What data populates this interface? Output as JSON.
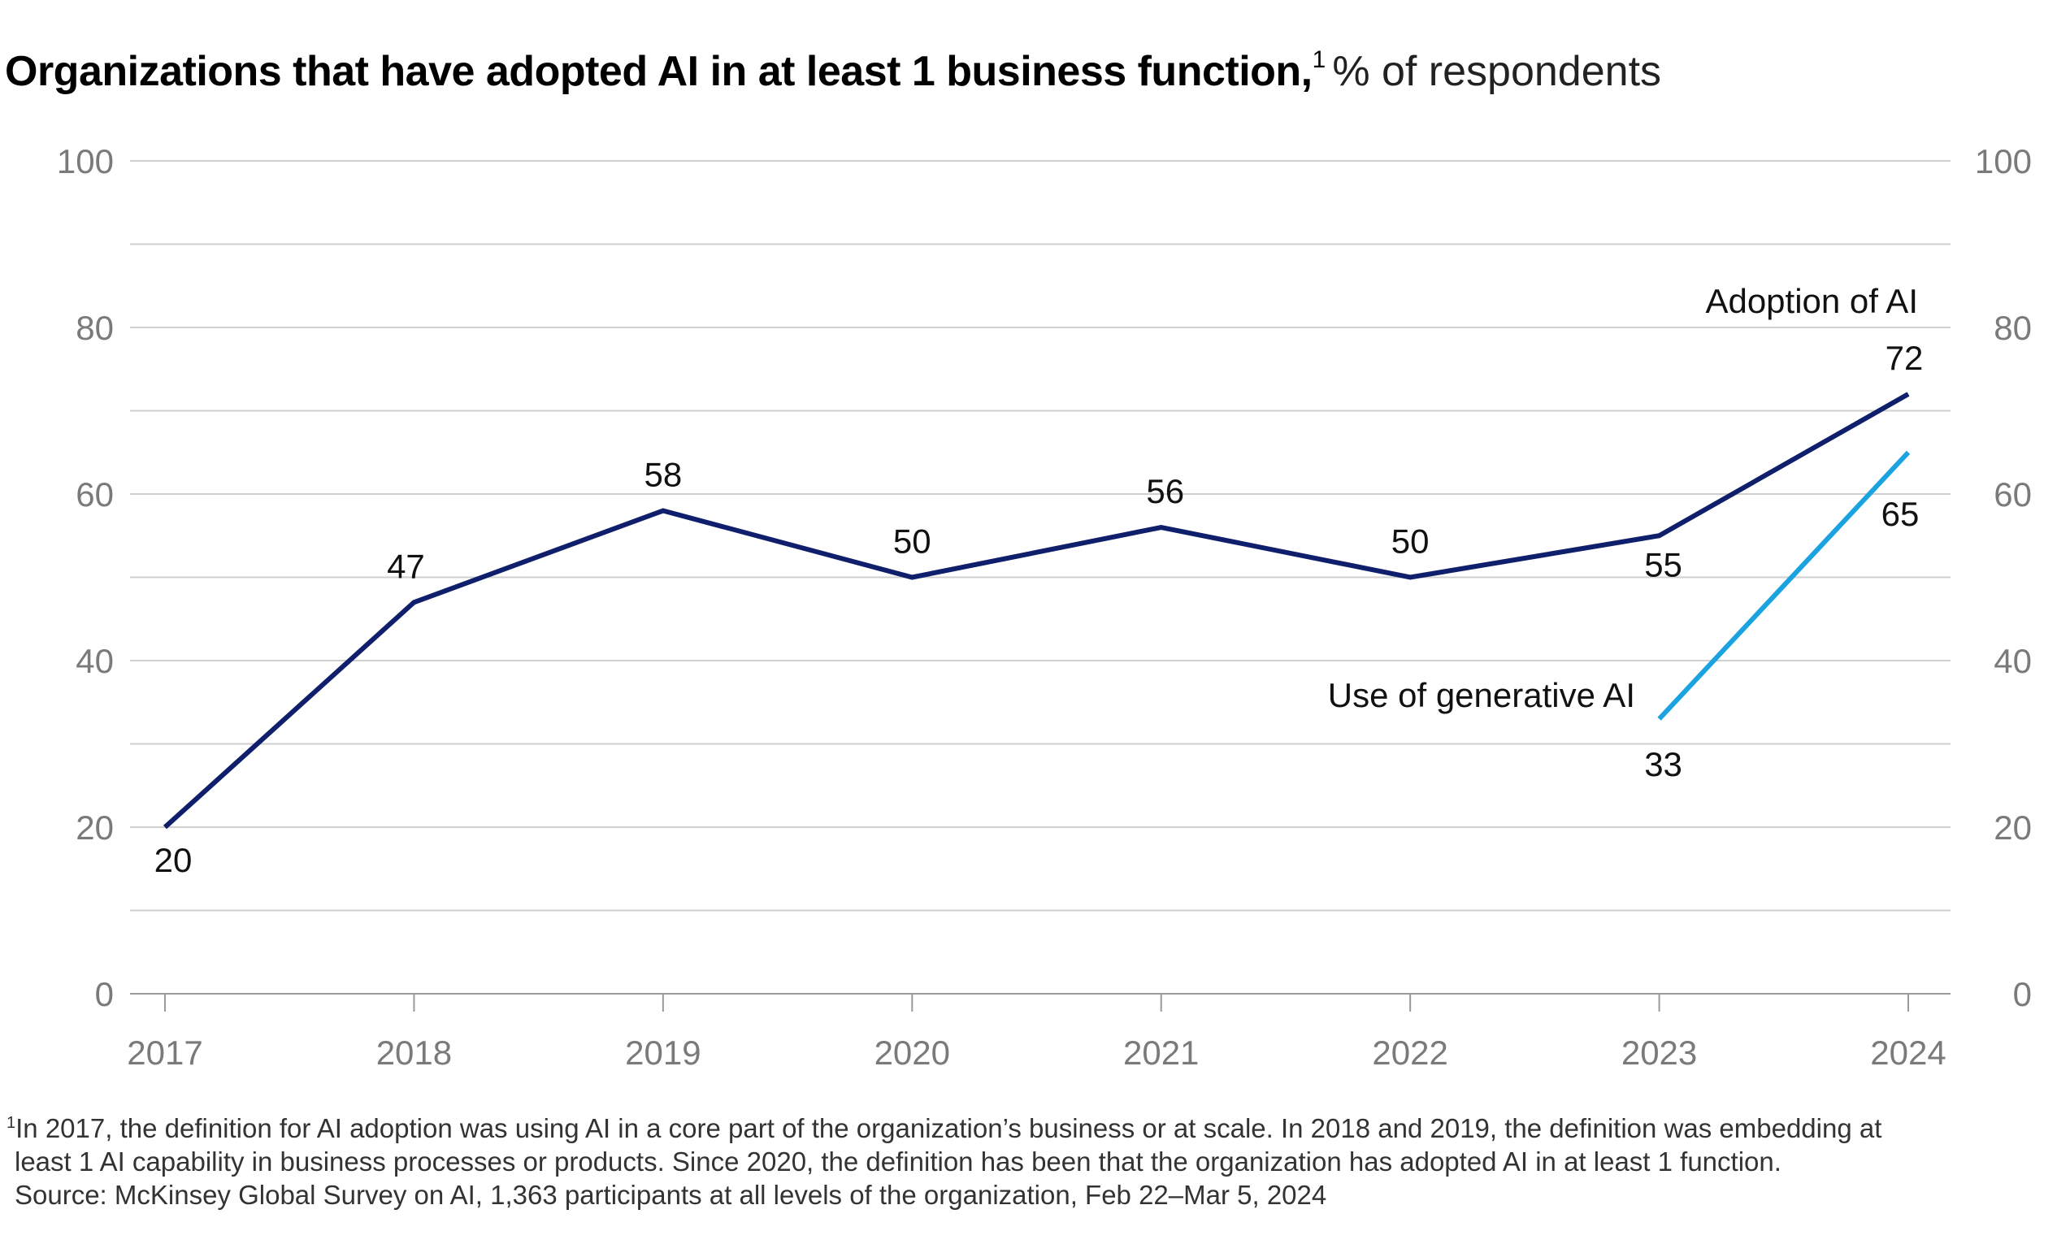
{
  "title": {
    "main": "Organizations that have adopted AI in at least 1 business function,",
    "superscript": "1",
    "subtitle": "% of respondents"
  },
  "footnotes": {
    "marker": "1",
    "line1": "In 2017, the definition for AI adoption was using AI in a core part of the organization’s business or at scale. In 2018 and 2019, the definition was embedding at",
    "line2": "least 1 AI capability in business processes or products. Since 2020, the definition has been that the organization has adopted AI in at least 1 function.",
    "source": "Source: McKinsey Global Survey on AI, 1,363 participants at all levels of the organization, Feb 22–Mar 5, 2024"
  },
  "chart_data": {
    "type": "line",
    "x": [
      "2017",
      "2018",
      "2019",
      "2020",
      "2021",
      "2022",
      "2023",
      "2024"
    ],
    "ylim": [
      0,
      100
    ],
    "yticks": [
      0,
      20,
      40,
      60,
      80,
      100
    ],
    "y_axis_both_sides": true,
    "grid": true,
    "series": [
      {
        "name": "Adoption of AI",
        "color": "#0f1f6b",
        "x": [
          "2017",
          "2018",
          "2019",
          "2020",
          "2021",
          "2022",
          "2023",
          "2024"
        ],
        "values": [
          20,
          47,
          58,
          50,
          56,
          50,
          55,
          72
        ],
        "labels": [
          "20",
          "47",
          "58",
          "50",
          "56",
          "50",
          "55",
          "72"
        ]
      },
      {
        "name": "Use of generative AI",
        "color": "#1aa3e0",
        "x": [
          "2023",
          "2024"
        ],
        "values": [
          33,
          65
        ],
        "labels": [
          "33",
          "65"
        ]
      }
    ]
  }
}
